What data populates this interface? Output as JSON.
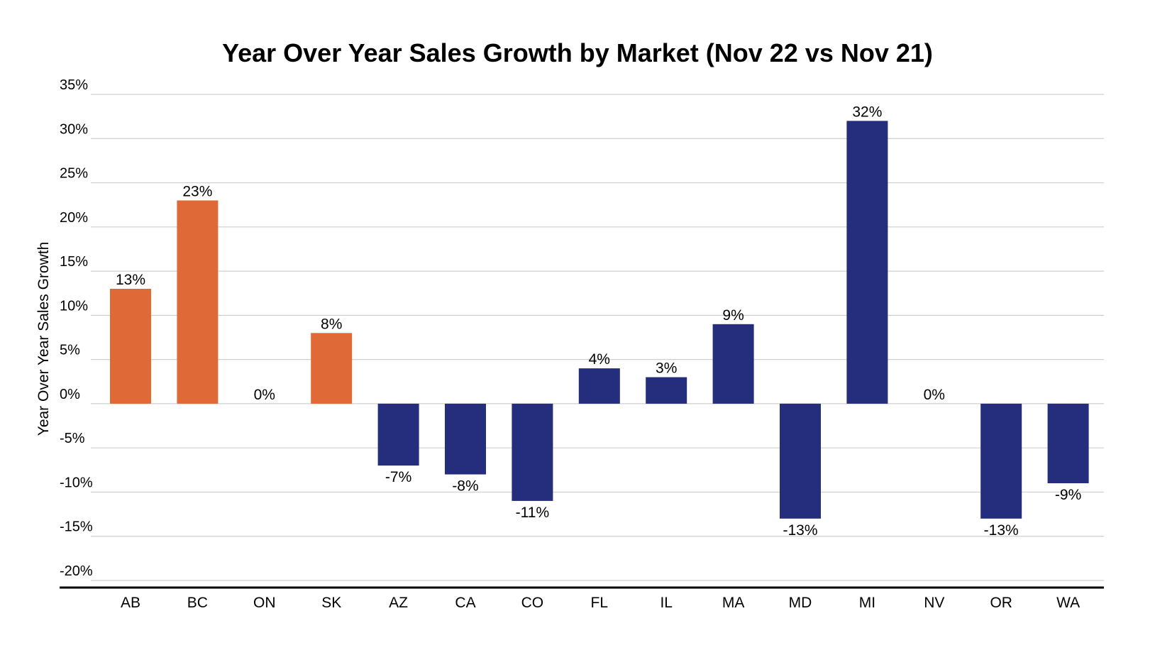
{
  "chart_data": {
    "type": "bar",
    "title": "Year Over Year Sales Growth by Market (Nov 22 vs Nov 21)",
    "xlabel": "",
    "ylabel": "Year Over Year Sales Growth",
    "categories": [
      "AB",
      "BC",
      "ON",
      "SK",
      "AZ",
      "CA",
      "CO",
      "FL",
      "IL",
      "MA",
      "MD",
      "MI",
      "NV",
      "OR",
      "WA"
    ],
    "values": [
      13,
      23,
      0,
      8,
      -7,
      -8,
      -11,
      4,
      3,
      9,
      -13,
      32,
      0,
      -13,
      -9
    ],
    "data_labels": [
      "13%",
      "23%",
      "0%",
      "8%",
      "-7%",
      "-8%",
      "-11%",
      "4%",
      "3%",
      "9%",
      "-13%",
      "32%",
      "0%",
      "-13%",
      "-9%"
    ],
    "bar_colors": [
      "#E06A37",
      "#E06A37",
      "#E06A37",
      "#E06A37",
      "#252E7D",
      "#252E7D",
      "#252E7D",
      "#252E7D",
      "#252E7D",
      "#252E7D",
      "#252E7D",
      "#252E7D",
      "#252E7D",
      "#252E7D",
      "#252E7D"
    ],
    "ylim": [
      -20,
      35
    ],
    "yticks": [
      35,
      30,
      25,
      20,
      15,
      10,
      5,
      0,
      -5,
      -10,
      -15,
      -20
    ],
    "ytick_labels": [
      "35%",
      "30%",
      "25%",
      "20%",
      "15%",
      "10%",
      "5%",
      "0%",
      "-5%",
      "-10%",
      "-15%",
      "-20%"
    ],
    "grid": true,
    "legend": "none"
  }
}
